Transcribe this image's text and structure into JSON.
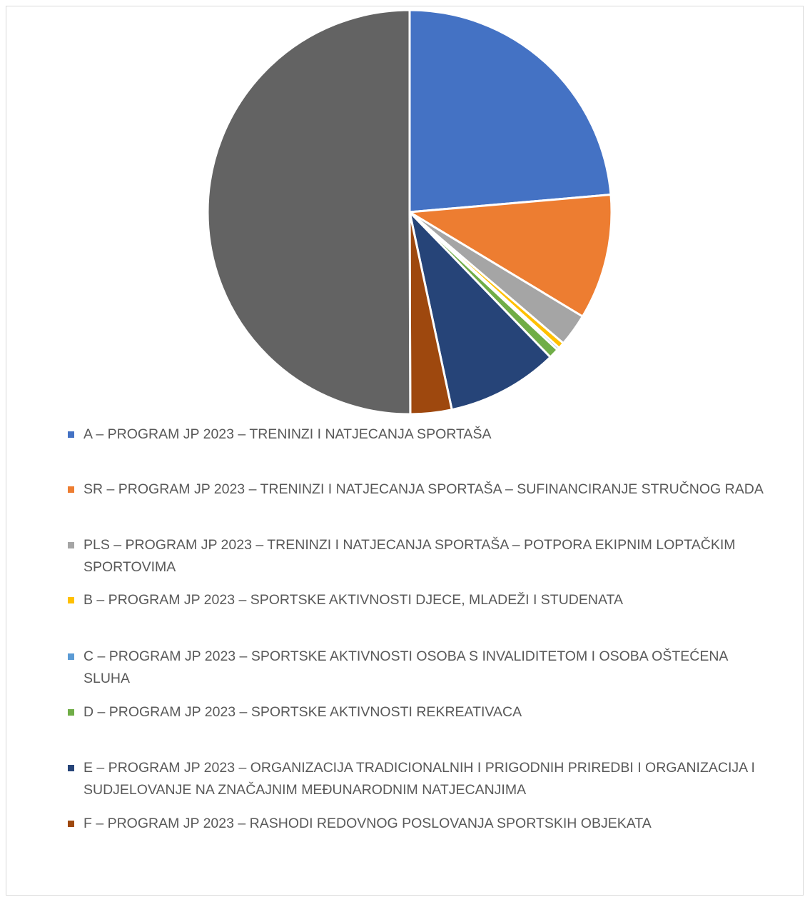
{
  "chart_data": {
    "type": "pie",
    "categories": [
      "A – PROGRAM JP 2023 – TRENINZI I NATJECANJA SPORTAŠA",
      "SR – PROGRAM JP 2023 – TRENINZI I NATJECANJA  SPORTAŠA – SUFINANCIRANJE STRUČNOG RADA",
      "PLS – PROGRAM JP 2023 – TRENINZI I NATJECANJA  SPORTAŠA – POTPORA EKIPNIM LOPTAČKIM SPORTOVIMA",
      "B – PROGRAM JP 2023 – SPORTSKE AKTIVNOSTI DJECE, MLADEŽI I STUDENATA",
      "C – PROGRAM JP 2023 – SPORTSKE AKTIVNOSTI OSOBA S INVALIDITETOM I OSOBA OŠTEĆENA SLUHA",
      "D – PROGRAM JP 2023 –  SPORTSKE AKTIVNOSTI REKREATIVACA",
      "E – PROGRAM JP 2023 – ORGANIZACIJA TRADICIONALNIH I PRIGODNIH PRIREDBI I ORGANIZACIJA I SUDJELOVANJE NA ZNAČAJNIM MEĐUNARODNIM NATJECANJIMA",
      "F – PROGRAM JP 2023 –  RASHODI REDOVNOG POSLOVANJA SPORTSKIH OBJEKATA",
      null
    ],
    "values": [
      23.6,
      10.0,
      2.6,
      0.5,
      0.2,
      0.8,
      8.9,
      3.3,
      50
    ],
    "colors": [
      "#4472c4",
      "#ed7d31",
      "#a5a5a5",
      "#ffc000",
      "#5b9bd5",
      "#70ad47",
      "#264478",
      "#9e480e",
      "#636363"
    ]
  }
}
